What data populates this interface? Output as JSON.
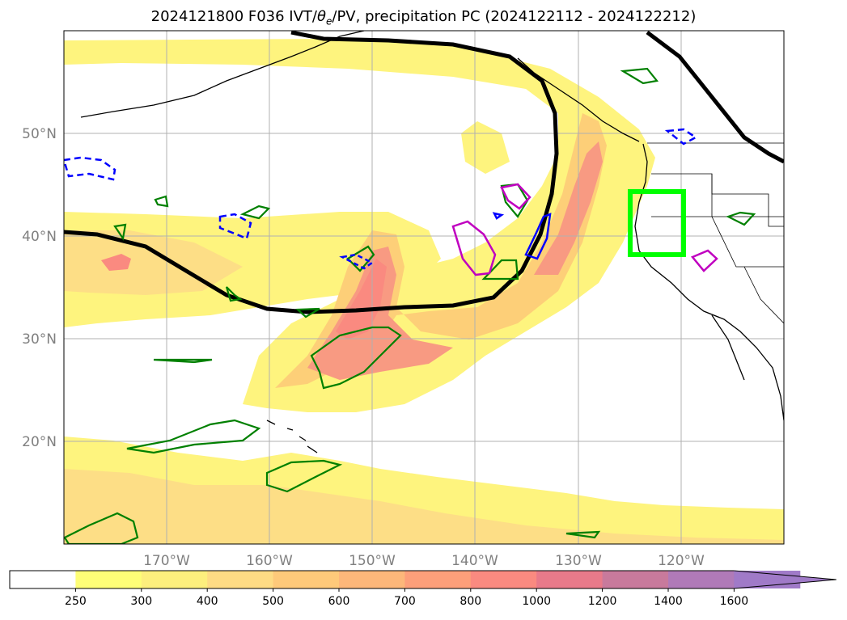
{
  "figure": {
    "title_prefix": "2024121800 F036 IVT/",
    "title_theta": "θ",
    "title_sub": "e",
    "title_suffix": "/PV, precipitation PC (2024122112 - 2024122212)"
  },
  "map": {
    "projection": "PlateCarree",
    "lon_range": [
      180,
      -110
    ],
    "lat_range": [
      10,
      60
    ],
    "gridlines": true,
    "lon_ticks": [
      "170°W",
      "160°W",
      "150°W",
      "140°W",
      "130°W",
      "120°W"
    ],
    "lat_ticks": [
      "50°N",
      "40°N",
      "30°N",
      "20°N"
    ],
    "highlight_box": {
      "lon": [
        -125,
        -120
      ],
      "lat": [
        38,
        44.5
      ],
      "color": "#00ff00"
    },
    "contour_colors": {
      "pv_line": "#000000",
      "precip": "#008000",
      "theta_e_pos": "#c000c0",
      "theta_e_neg": "#0000ff"
    }
  },
  "colorbar": {
    "extend": "max",
    "levels": [
      "250",
      "300",
      "400",
      "500",
      "600",
      "700",
      "800",
      "1000",
      "1200",
      "1400",
      "1600"
    ],
    "colors": [
      "#ffffff",
      "#fefe77",
      "#fdef7d",
      "#fedb84",
      "#fec97a",
      "#fdb77a",
      "#fd9f7a",
      "#fa8a80",
      "#e87a8a",
      "#c87a9c",
      "#b07ab8",
      "#a07ac8"
    ]
  }
}
